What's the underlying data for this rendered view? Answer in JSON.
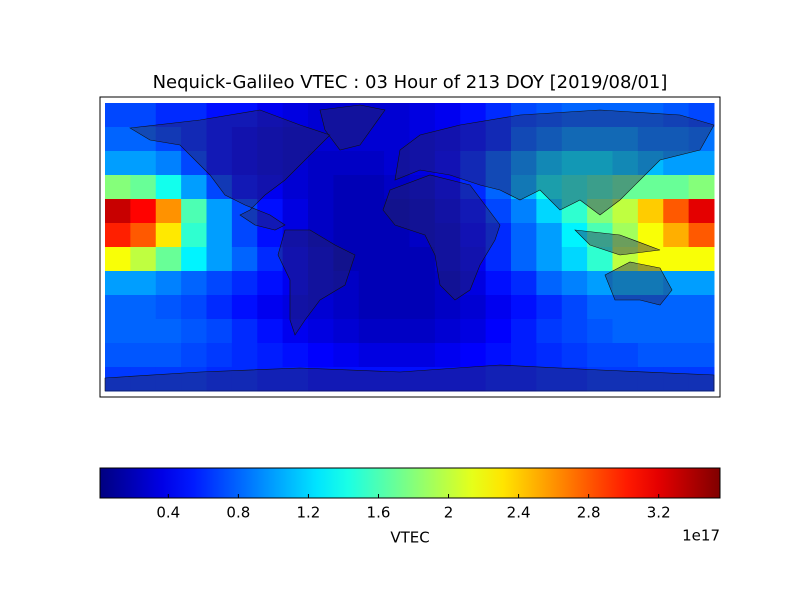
{
  "chart_data": {
    "type": "heatmap",
    "title": "Nequick-Galileo VTEC : 03 Hour of 213 DOY [2019/08/01]",
    "xlim": [
      -180,
      180
    ],
    "ylim": [
      -90,
      90
    ],
    "z": [
      [
        0.7,
        0.7,
        0.6,
        0.6,
        0.5,
        0.5,
        0.4,
        0.35,
        0.3,
        0.3,
        0.3,
        0.3,
        0.35,
        0.4,
        0.5,
        0.6,
        0.7,
        0.75,
        0.8,
        0.8,
        0.8,
        0.8,
        0.75,
        0.7
      ],
      [
        0.8,
        0.8,
        0.7,
        0.6,
        0.5,
        0.4,
        0.35,
        0.3,
        0.3,
        0.3,
        0.3,
        0.3,
        0.35,
        0.4,
        0.5,
        0.6,
        0.8,
        0.9,
        1.0,
        1.0,
        1.0,
        0.9,
        0.9,
        0.85
      ],
      [
        1.0,
        1.0,
        0.9,
        0.7,
        0.5,
        0.4,
        0.35,
        0.3,
        0.25,
        0.25,
        0.25,
        0.3,
        0.35,
        0.45,
        0.6,
        0.8,
        1.0,
        1.2,
        1.3,
        1.3,
        1.2,
        1.1,
        1.0,
        1.0
      ],
      [
        1.8,
        1.7,
        1.4,
        1.0,
        0.7,
        0.5,
        0.4,
        0.3,
        0.25,
        0.2,
        0.2,
        0.25,
        0.3,
        0.4,
        0.6,
        0.8,
        1.1,
        1.4,
        1.5,
        1.6,
        1.7,
        1.7,
        1.7,
        1.8
      ],
      [
        3.3,
        3.1,
        2.6,
        1.6,
        1.0,
        0.7,
        0.5,
        0.35,
        0.25,
        0.2,
        0.2,
        0.2,
        0.25,
        0.35,
        0.5,
        0.7,
        0.9,
        1.2,
        1.5,
        1.8,
        2.0,
        2.4,
        2.8,
        3.2
      ],
      [
        3.0,
        2.8,
        2.3,
        1.5,
        1.0,
        0.7,
        0.5,
        0.35,
        0.25,
        0.2,
        0.2,
        0.2,
        0.25,
        0.3,
        0.45,
        0.6,
        0.8,
        1.0,
        1.3,
        1.6,
        1.9,
        2.2,
        2.5,
        2.8
      ],
      [
        2.2,
        2.0,
        1.7,
        1.3,
        1.0,
        0.8,
        0.6,
        0.4,
        0.3,
        0.2,
        0.2,
        0.2,
        0.2,
        0.3,
        0.4,
        0.6,
        0.8,
        1.0,
        1.2,
        1.5,
        2.0,
        2.2,
        2.2,
        2.2
      ],
      [
        1.0,
        1.0,
        0.9,
        0.8,
        0.7,
        0.6,
        0.5,
        0.4,
        0.3,
        0.25,
        0.2,
        0.2,
        0.2,
        0.25,
        0.35,
        0.5,
        0.6,
        0.8,
        0.9,
        1.0,
        1.1,
        1.1,
        1.0,
        1.0
      ],
      [
        0.8,
        0.8,
        0.75,
        0.7,
        0.6,
        0.5,
        0.4,
        0.35,
        0.3,
        0.25,
        0.2,
        0.2,
        0.2,
        0.25,
        0.3,
        0.4,
        0.5,
        0.6,
        0.7,
        0.8,
        0.8,
        0.8,
        0.8,
        0.8
      ],
      [
        0.8,
        0.8,
        0.8,
        0.75,
        0.7,
        0.6,
        0.5,
        0.4,
        0.35,
        0.3,
        0.25,
        0.25,
        0.25,
        0.3,
        0.35,
        0.45,
        0.55,
        0.65,
        0.7,
        0.75,
        0.8,
        0.8,
        0.8,
        0.8
      ],
      [
        0.75,
        0.75,
        0.75,
        0.7,
        0.65,
        0.6,
        0.55,
        0.5,
        0.45,
        0.4,
        0.35,
        0.35,
        0.35,
        0.4,
        0.45,
        0.5,
        0.55,
        0.6,
        0.65,
        0.7,
        0.7,
        0.75,
        0.75,
        0.75
      ],
      [
        0.65,
        0.65,
        0.65,
        0.65,
        0.6,
        0.6,
        0.55,
        0.55,
        0.5,
        0.5,
        0.5,
        0.5,
        0.5,
        0.5,
        0.5,
        0.55,
        0.55,
        0.6,
        0.6,
        0.65,
        0.65,
        0.65,
        0.65,
        0.65
      ]
    ],
    "colorbar": {
      "label": "VTEC",
      "colormap": "jet",
      "lim": [
        0.01,
        3.55
      ],
      "ticks": [
        0.4,
        0.8,
        1.2,
        1.6,
        2.0,
        2.4,
        2.8,
        3.2
      ],
      "offset_label": "1e17"
    }
  }
}
